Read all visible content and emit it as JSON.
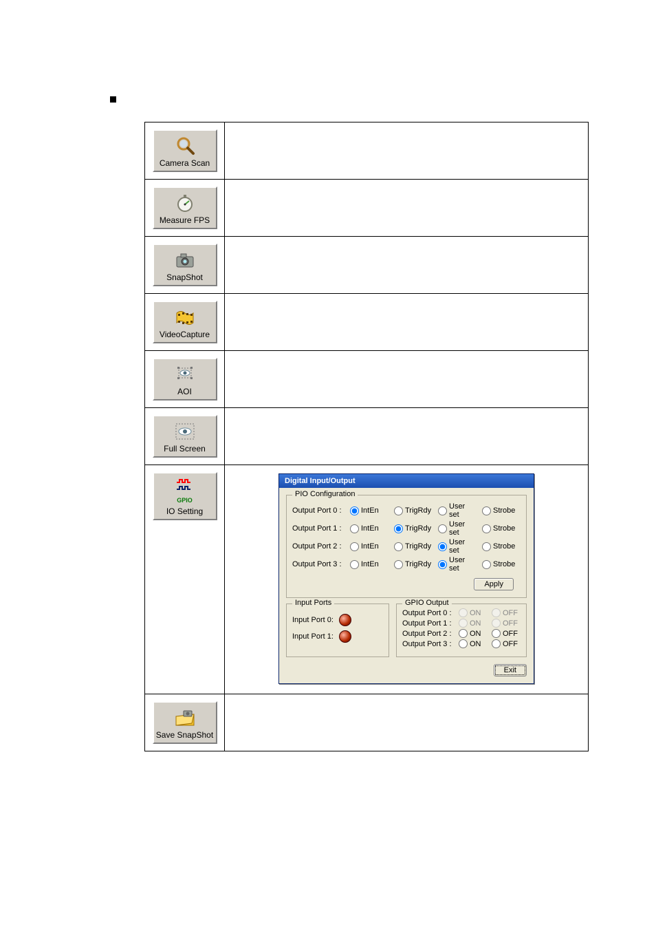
{
  "toolbar": {
    "camera_scan": "Camera Scan",
    "measure_fps": "Measure FPS",
    "snapshot": "SnapShot",
    "video_capture": "VideoCapture",
    "aoi": "AOI",
    "full_screen": "Full Screen",
    "io_setting": "IO Setting",
    "save_snapshot": "Save SnapShot",
    "gpio_text": "GPIO"
  },
  "dialog": {
    "title": "Digital Input/Output",
    "pio_group": "PIO Configuration",
    "ports": [
      {
        "label": "Output Port 0 :",
        "sel": "IntEn",
        "opts": [
          "IntEn",
          "TrigRdy",
          "User set",
          "Strobe"
        ]
      },
      {
        "label": "Output Port 1 :",
        "sel": "TrigRdy",
        "opts": [
          "IntEn",
          "TrigRdy",
          "User set",
          "Strobe"
        ]
      },
      {
        "label": "Output Port 2 :",
        "sel": "User set",
        "opts": [
          "IntEn",
          "TrigRdy",
          "User set",
          "Strobe"
        ]
      },
      {
        "label": "Output Port 3 :",
        "sel": "User set",
        "opts": [
          "IntEn",
          "TrigRdy",
          "User set",
          "Strobe"
        ]
      }
    ],
    "apply": "Apply",
    "input_group": "Input Ports",
    "input0": "Input Port 0:",
    "input1": "Input Port 1:",
    "gpio_group": "GPIO Output",
    "gpio": [
      {
        "label": "Output Port 0 :",
        "on": "ON",
        "off": "OFF",
        "disabled": true
      },
      {
        "label": "Output Port 1 :",
        "on": "ON",
        "off": "OFF",
        "disabled": true
      },
      {
        "label": "Output Port 2 :",
        "on": "ON",
        "off": "OFF",
        "disabled": false
      },
      {
        "label": "Output Port 3 :",
        "on": "ON",
        "off": "OFF",
        "disabled": false
      }
    ],
    "exit": "Exit"
  },
  "colors": {
    "titlebar_top": "#3b77d8",
    "titlebar_bot": "#1c4fb0",
    "dialog_bg": "#ece9d8",
    "button_bg": "#d4d0c8",
    "led_red": "#b22800",
    "gpio_red": "#ff0000",
    "gpio_blue": "#0a246a"
  }
}
